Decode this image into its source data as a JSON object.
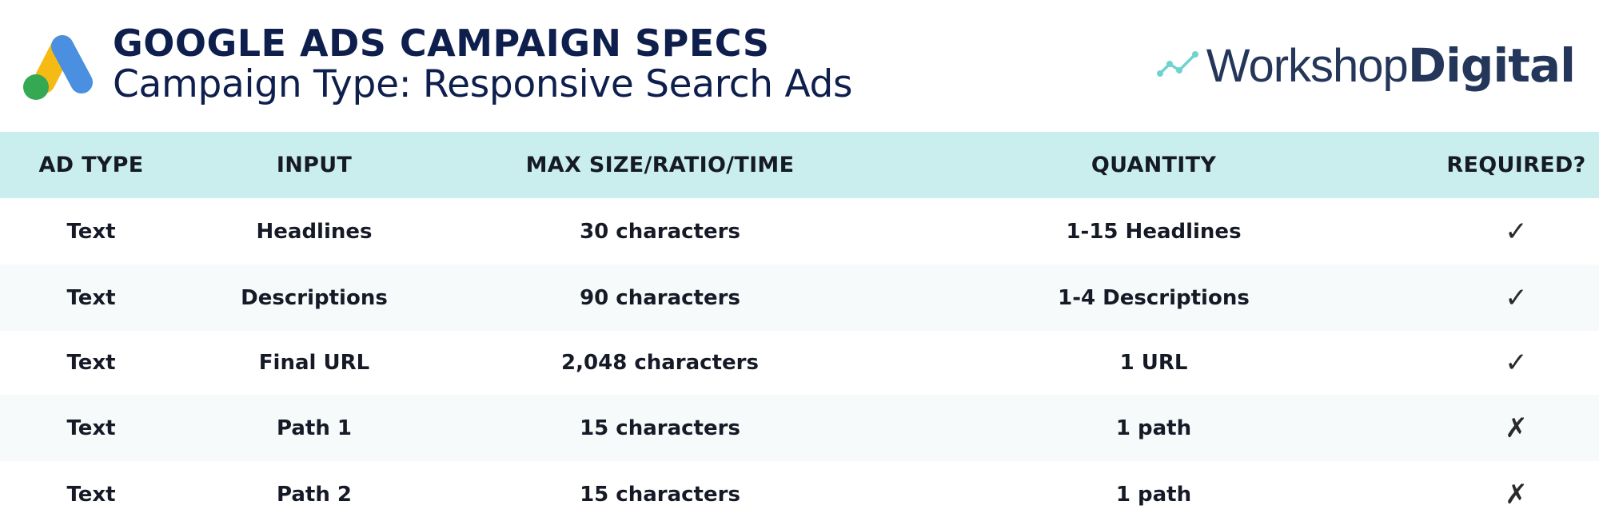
{
  "header": {
    "title": "GOOGLE ADS CAMPAIGN SPECS",
    "subtitle": "Campaign Type: Responsive Search Ads",
    "logo_left_icon": "google-ads-icon",
    "logo_right": {
      "light": "Workshop",
      "bold": "Digital"
    }
  },
  "colors": {
    "title": "#0e1f4d",
    "header_band": "#c9eeed",
    "gads_blue": "#4a8fe0",
    "gads_yellow": "#f5bb14",
    "gads_green": "#35a853",
    "wd_text": "#243659",
    "wd_mark": "#6fd3cf"
  },
  "table": {
    "columns": [
      "AD TYPE",
      "INPUT",
      "MAX SIZE/RATIO/TIME",
      "QUANTITY",
      "REQUIRED?"
    ],
    "rows": [
      {
        "ad_type": "Text",
        "input": "Headlines",
        "max": "30 characters",
        "quantity": "1-15 Headlines",
        "required": "✓"
      },
      {
        "ad_type": "Text",
        "input": "Descriptions",
        "max": "90 characters",
        "quantity": "1-4 Descriptions",
        "required": "✓"
      },
      {
        "ad_type": "Text",
        "input": "Final URL",
        "max": "2,048 characters",
        "quantity": "1 URL",
        "required": "✓"
      },
      {
        "ad_type": "Text",
        "input": "Path 1",
        "max": "15 characters",
        "quantity": "1 path",
        "required": "✗"
      },
      {
        "ad_type": "Text",
        "input": "Path 2",
        "max": "15 characters",
        "quantity": "1 path",
        "required": "✗"
      }
    ]
  }
}
